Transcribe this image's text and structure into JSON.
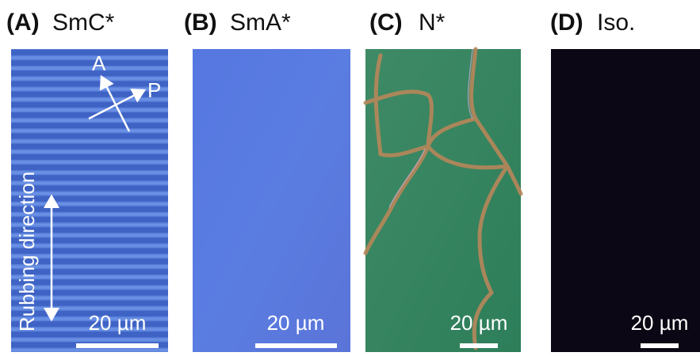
{
  "panels": [
    {
      "tag": "(A)",
      "name": "SmC*",
      "scale_bar": "20 µm",
      "annotations": {
        "analyzer": "A",
        "polarizer": "P",
        "rubbing": "Rubbing direction"
      }
    },
    {
      "tag": "(B)",
      "name": "SmA*",
      "scale_bar": "20 µm"
    },
    {
      "tag": "(C)",
      "name": "N*",
      "scale_bar": "20 µm"
    },
    {
      "tag": "(D)",
      "name": "Iso.",
      "scale_bar": "20 µm"
    }
  ]
}
